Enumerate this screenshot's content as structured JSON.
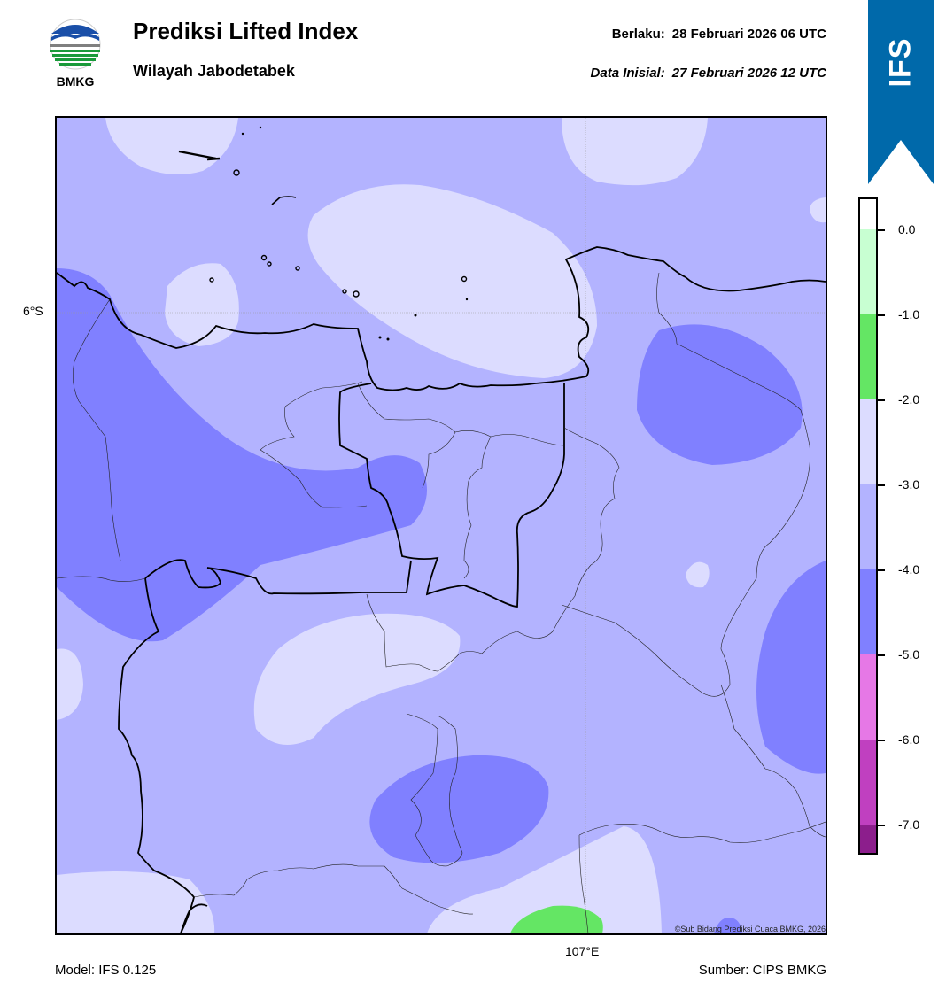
{
  "header": {
    "title": "Prediksi Lifted Index",
    "subtitle": "Wilayah Jabodetabek",
    "valid_label": "Berlaku:",
    "valid_time": "28 Februari 2026 06 UTC",
    "init_label": "Data Inisial:",
    "init_time": "27 Februari 2026 12 UTC"
  },
  "logo": {
    "text": "BMKG",
    "icon": "bmkg-logo-icon"
  },
  "ribbon": {
    "text": "IFS",
    "color": "#0069aa"
  },
  "map": {
    "lat_label": "6°S",
    "lon_label": "107°E",
    "copyright": "©Sub Bidang Prediksi Cuaca BMKG, 2026"
  },
  "footer": {
    "model": "Model: IFS 0.125",
    "source": "Sumber: CIPS BMKG"
  },
  "colorbar": {
    "ticks": [
      "0.0",
      "-1.0",
      "-2.0",
      "-3.0",
      "-4.0",
      "-5.0",
      "-6.0",
      "-7.0"
    ],
    "levels": [
      {
        "range": "> 0.0",
        "color": "#ffffff"
      },
      {
        "range": "0.0 to -1.0",
        "color": "#c8ffd2"
      },
      {
        "range": "-1.0 to -2.0",
        "color": "#64e664"
      },
      {
        "range": "-2.0 to -3.0",
        "color": "#dcdcff"
      },
      {
        "range": "-3.0 to -4.0",
        "color": "#b3b3ff"
      },
      {
        "range": "-4.0 to -5.0",
        "color": "#8080ff"
      },
      {
        "range": "-5.0 to -6.0",
        "color": "#e678e6"
      },
      {
        "range": "-6.0 to -7.0",
        "color": "#c040c0"
      },
      {
        "range": "< -7.0",
        "color": "#8c1e8c"
      }
    ]
  }
}
